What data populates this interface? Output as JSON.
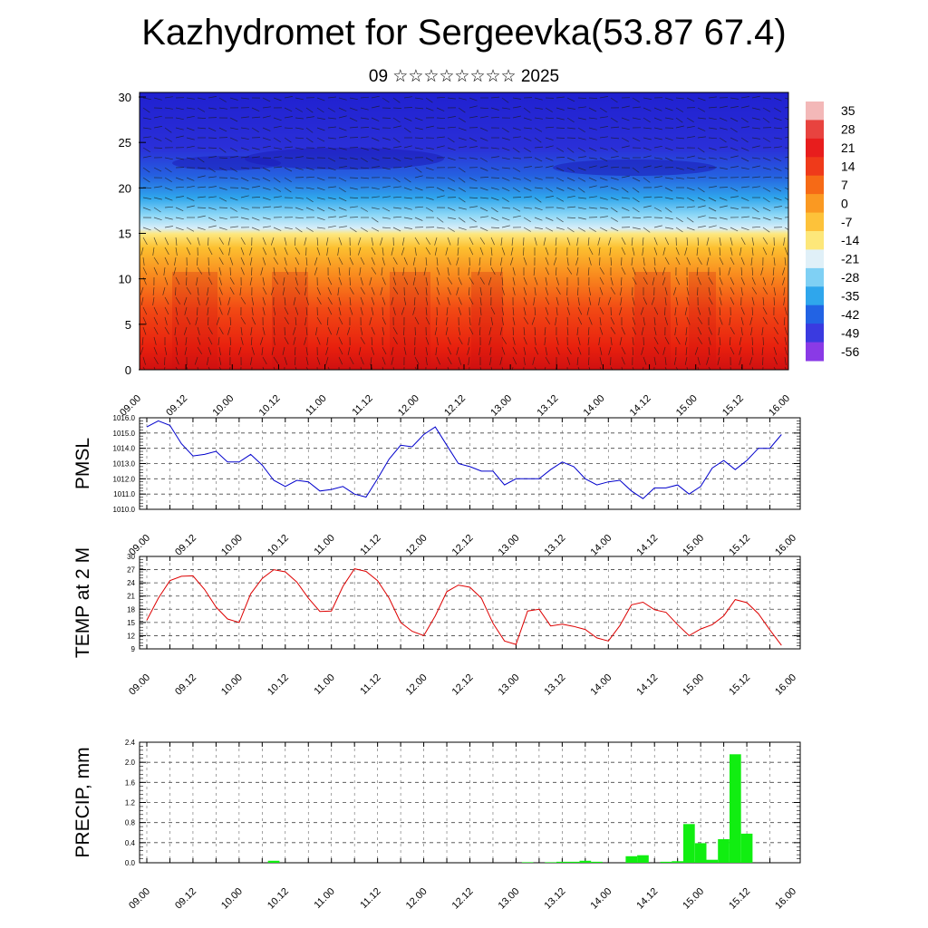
{
  "page": {
    "title": "Kazhydromet for Sergeevka(53.87 67.4)",
    "subtitle": "09 ☆☆☆☆☆☆☆☆ 2025"
  },
  "chart_data": [
    {
      "type": "heatmap",
      "title": "",
      "xlabel": "",
      "ylabel": "",
      "x_ticks": [
        "09.00",
        "09.12",
        "10.00",
        "10.12",
        "11.00",
        "11.12",
        "12.00",
        "12.12",
        "13.00",
        "13.12",
        "14.00",
        "14.12",
        "15.00",
        "15.12",
        "16.00"
      ],
      "y_ticks": [
        0,
        5,
        10,
        15,
        20,
        25,
        30
      ],
      "ylim": [
        0,
        30.5
      ],
      "colorbar_labels": [
        "35",
        "28",
        "21",
        "14",
        "7",
        "0",
        "-7",
        "-14",
        "-21",
        "-28",
        "-35",
        "-42",
        "-49",
        "-56"
      ],
      "colorbar_colors": [
        "#f3b8b8",
        "#e8433f",
        "#e81d1d",
        "#ef3a1a",
        "#f66a16",
        "#fa9922",
        "#fdc23a",
        "#fde77a",
        "#e0f0f8",
        "#7fd0f4",
        "#2fa6ec",
        "#2263e4",
        "#3a3ae0",
        "#8a3ae6"
      ],
      "value_range": [
        -56,
        35
      ],
      "has_wind_barbs": true
    },
    {
      "type": "line",
      "title": "",
      "xlabel": "",
      "ylabel": "PMSL",
      "ylim": [
        1010.0,
        1016.0
      ],
      "y_ticks": [
        "1010.0",
        "1011.0",
        "1012.0",
        "1013.0",
        "1014.0",
        "1015.0",
        "1016.0"
      ],
      "x_ticks": [
        "09.00",
        "09.12",
        "10.00",
        "10.12",
        "11.00",
        "11.12",
        "12.00",
        "12.12",
        "13.00",
        "13.12",
        "14.00",
        "14.12",
        "15.00",
        "15.12",
        "16.00"
      ],
      "x": [
        0,
        3,
        6,
        9,
        12,
        15,
        18,
        21,
        24,
        27,
        30,
        33,
        36,
        39,
        42,
        45,
        48,
        51,
        54,
        57,
        60,
        63,
        66,
        69,
        72,
        75,
        78,
        81,
        84,
        87,
        90,
        93,
        96,
        99,
        102,
        105,
        108,
        111,
        114,
        117,
        120,
        123,
        126,
        129,
        132,
        135,
        138,
        141,
        144,
        147,
        150,
        153,
        156,
        159,
        162,
        165
      ],
      "series": [
        {
          "name": "",
          "color": "#0000cc",
          "values": [
            1015.4,
            1015.8,
            1015.5,
            1014.3,
            1013.5,
            1013.6,
            1013.8,
            1013.1,
            1013.1,
            1013.6,
            1012.9,
            1011.9,
            1011.5,
            1011.9,
            1011.8,
            1011.2,
            1011.3,
            1011.5,
            1011.0,
            1010.8,
            1012.0,
            1013.3,
            1014.2,
            1014.1,
            1014.9,
            1015.4,
            1014.2,
            1013.0,
            1012.8,
            1012.5,
            1012.5,
            1011.6,
            1012.0,
            1012.0,
            1012.0,
            1012.6,
            1013.1,
            1012.8,
            1012.0,
            1011.6,
            1011.8,
            1011.9,
            1011.2,
            1010.7,
            1011.4,
            1011.4,
            1011.6,
            1011.0,
            1011.5,
            1012.7,
            1013.2,
            1012.6,
            1013.2,
            1014.0,
            1014.0,
            1014.9
          ]
        }
      ]
    },
    {
      "type": "line",
      "title": "",
      "xlabel": "",
      "ylabel": "TEMP at 2 M",
      "ylim": [
        9,
        30
      ],
      "y_ticks": [
        "9",
        "12",
        "15",
        "18",
        "21",
        "24",
        "27",
        "30"
      ],
      "x_ticks": [
        "09.00",
        "09.12",
        "10.00",
        "10.12",
        "11.00",
        "11.12",
        "12.00",
        "12.12",
        "13.00",
        "13.12",
        "14.00",
        "14.12",
        "15.00",
        "15.12",
        "16.00"
      ],
      "x": [
        0,
        3,
        6,
        9,
        12,
        15,
        18,
        21,
        24,
        27,
        30,
        33,
        36,
        39,
        42,
        45,
        48,
        51,
        54,
        57,
        60,
        63,
        66,
        69,
        72,
        75,
        78,
        81,
        84,
        87,
        90,
        93,
        96,
        99,
        102,
        105,
        108,
        111,
        114,
        117,
        120,
        123,
        126,
        129,
        132,
        135,
        138,
        141,
        144,
        147,
        150,
        153,
        156,
        159,
        162,
        165
      ],
      "series": [
        {
          "name": "",
          "color": "#dd0000",
          "values": [
            15.5,
            20.5,
            24.5,
            25.5,
            25.6,
            22.5,
            18.5,
            15.8,
            15.0,
            21.5,
            25.0,
            27.0,
            26.5,
            24.2,
            20.5,
            17.5,
            17.6,
            23.2,
            27.2,
            26.6,
            24.5,
            20.5,
            15.0,
            13.0,
            12.0,
            16.5,
            22.0,
            23.5,
            23.0,
            20.5,
            14.8,
            10.8,
            10.0,
            17.6,
            18.0,
            14.2,
            14.6,
            14.1,
            13.4,
            11.5,
            10.8,
            14.3,
            19.0,
            19.6,
            17.9,
            17.3,
            14.5,
            12.0,
            13.5,
            14.5,
            16.5,
            20.2,
            19.5,
            17.0,
            13.3,
            9.8
          ]
        }
      ]
    },
    {
      "type": "bar",
      "title": "",
      "xlabel": "",
      "ylabel": "PRECIP, mm",
      "ylim": [
        0.0,
        2.4
      ],
      "y_ticks": [
        "0.0",
        "0.4",
        "0.8",
        "1.2",
        "1.6",
        "2.0",
        "2.4"
      ],
      "x_ticks": [
        "09.00",
        "09.12",
        "10.00",
        "10.12",
        "11.00",
        "11.12",
        "12.00",
        "12.12",
        "13.00",
        "13.12",
        "14.00",
        "14.12",
        "15.00",
        "15.12",
        "16.00"
      ],
      "color": "#11ee11",
      "bars": [
        {
          "x": 33,
          "value": 0.04
        },
        {
          "x": 99,
          "value": 0.01
        },
        {
          "x": 105,
          "value": 0.01
        },
        {
          "x": 108,
          "value": 0.02
        },
        {
          "x": 111,
          "value": 0.02
        },
        {
          "x": 114,
          "value": 0.04
        },
        {
          "x": 117,
          "value": 0.02
        },
        {
          "x": 126,
          "value": 0.13
        },
        {
          "x": 129,
          "value": 0.15
        },
        {
          "x": 135,
          "value": 0.02
        },
        {
          "x": 138,
          "value": 0.03
        },
        {
          "x": 141,
          "value": 0.77
        },
        {
          "x": 144,
          "value": 0.39
        },
        {
          "x": 147,
          "value": 0.06
        },
        {
          "x": 150,
          "value": 0.47
        },
        {
          "x": 153,
          "value": 2.16
        },
        {
          "x": 156,
          "value": 0.58
        }
      ]
    }
  ]
}
